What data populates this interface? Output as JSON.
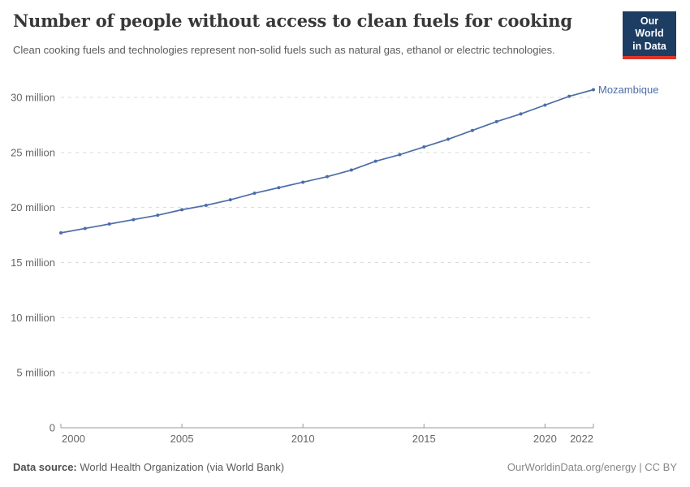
{
  "header": {
    "title": "Number of people without access to clean fuels for cooking",
    "subtitle": "Clean cooking fuels and technologies represent non-solid fuels such as natural gas, ethanol or electric technologies.",
    "logo": {
      "line1": "Our World",
      "line2": "in Data",
      "bg_color": "#1d3d63",
      "bar_color": "#dc362b"
    }
  },
  "chart_data": {
    "type": "line",
    "title": "Number of people without access to clean fuels for cooking",
    "xlabel": "",
    "ylabel": "",
    "unit": "million people",
    "grid": "dashed horizontal gridlines",
    "legend_position": "line-end label",
    "x_range": [
      2000,
      2022
    ],
    "ylim": [
      0,
      31
    ],
    "years": [
      2000,
      2001,
      2002,
      2003,
      2004,
      2005,
      2006,
      2007,
      2008,
      2009,
      2010,
      2011,
      2012,
      2013,
      2014,
      2015,
      2016,
      2017,
      2018,
      2019,
      2020,
      2021,
      2022
    ],
    "series": [
      {
        "name": "Mozambique",
        "color": "#4c6da8",
        "values": [
          17.7,
          18.1,
          18.5,
          18.9,
          19.3,
          19.8,
          20.2,
          20.7,
          21.3,
          21.8,
          22.3,
          22.8,
          23.4,
          24.2,
          24.8,
          25.5,
          26.2,
          27.0,
          27.8,
          28.5,
          29.3,
          30.1,
          30.7
        ]
      }
    ],
    "yticks": [
      {
        "value": 0,
        "label": "0"
      },
      {
        "value": 5,
        "label": "5 million"
      },
      {
        "value": 10,
        "label": "10 million"
      },
      {
        "value": 15,
        "label": "15 million"
      },
      {
        "value": 20,
        "label": "20 million"
      },
      {
        "value": 25,
        "label": "25 million"
      },
      {
        "value": 30,
        "label": "30 million"
      }
    ],
    "xticks": [
      {
        "year": 2000,
        "label": "2000",
        "align": "start"
      },
      {
        "year": 2005,
        "label": "2005",
        "align": "middle"
      },
      {
        "year": 2010,
        "label": "2010",
        "align": "middle"
      },
      {
        "year": 2015,
        "label": "2015",
        "align": "middle"
      },
      {
        "year": 2020,
        "label": "2020",
        "align": "middle"
      },
      {
        "year": 2022,
        "label": "2022",
        "align": "end"
      }
    ],
    "colors": {
      "grid": "#dadada",
      "axis": "#999999",
      "tick_label": "#666666"
    }
  },
  "footer": {
    "datasource_label": "Data source:",
    "datasource_value": " World Health Organization (via World Bank)",
    "credit_link": "OurWorldinData.org/energy",
    "credit_suffix": " | CC BY"
  }
}
